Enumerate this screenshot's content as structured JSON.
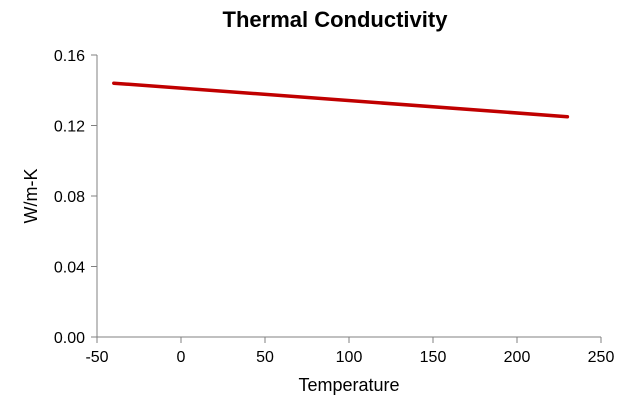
{
  "chart_data": {
    "type": "line",
    "title": "Thermal Conductivity",
    "xlabel": "Temperature",
    "ylabel": "W/m-K",
    "xlim": [
      -50,
      250
    ],
    "ylim": [
      0,
      0.16
    ],
    "x_ticks": [
      "-50",
      "0",
      "50",
      "100",
      "150",
      "200",
      "250"
    ],
    "y_ticks": [
      "0.00",
      "0.04",
      "0.08",
      "0.12",
      "0.16"
    ],
    "grid": false,
    "legend": "none",
    "series": [
      {
        "color": "#c00000",
        "x": [
          -40,
          230
        ],
        "y": [
          0.144,
          0.125
        ]
      }
    ]
  }
}
